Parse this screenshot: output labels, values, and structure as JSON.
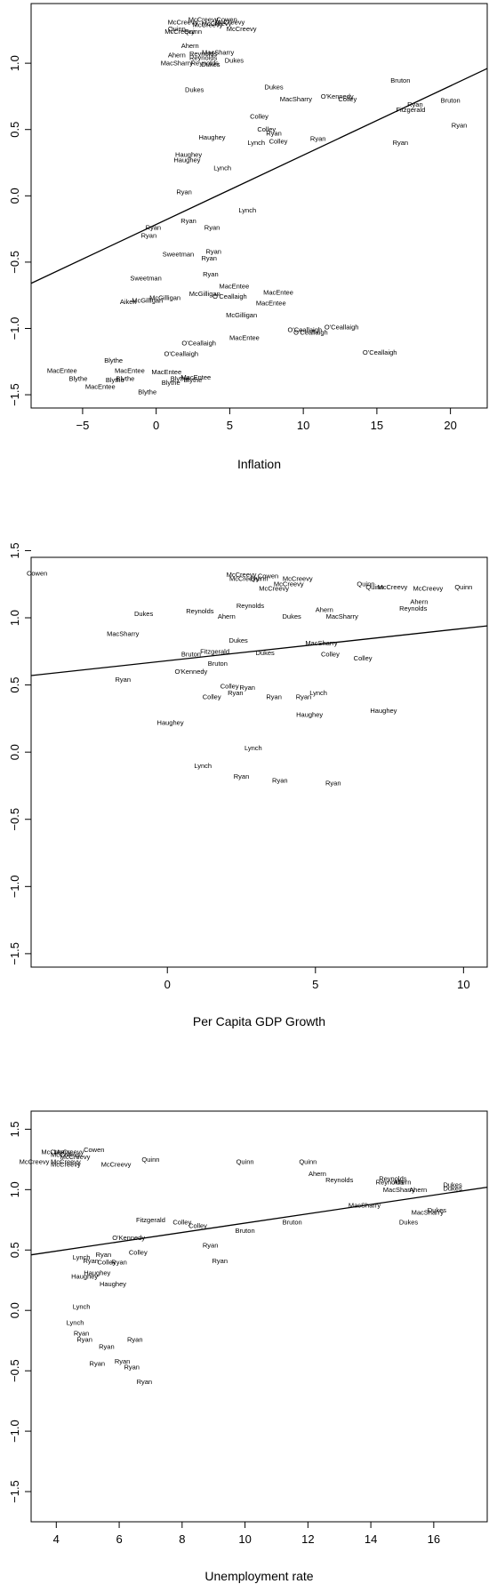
{
  "chart_data": [
    {
      "type": "scatter",
      "xlabel": "Inflation",
      "ylabel": "",
      "xlim": [
        -8.5,
        22.5
      ],
      "ylim": [
        -1.6,
        1.45
      ],
      "xticks": [
        -5,
        0,
        5,
        10,
        15,
        20
      ],
      "xtick_labels": [
        "−5",
        "0",
        "5",
        "10",
        "15",
        "20"
      ],
      "yticks": [
        -1.5,
        -1.0,
        -0.5,
        0.0,
        0.5,
        1.0
      ],
      "ytick_labels": [
        "−1.5",
        "−1.0",
        "−0.5",
        "0.0",
        "0.5",
        "1.0"
      ],
      "fit_line": {
        "x": [
          -8.5,
          22.5
        ],
        "y": [
          -0.66,
          0.96
        ]
      },
      "points": [
        {
          "x": 3.2,
          "y": 1.33,
          "label": "McCreevy"
        },
        {
          "x": 4.8,
          "y": 1.33,
          "label": "Cowen"
        },
        {
          "x": 1.8,
          "y": 1.31,
          "label": "McCreevy"
        },
        {
          "x": 4.1,
          "y": 1.3,
          "label": "McCreevy"
        },
        {
          "x": 5.0,
          "y": 1.31,
          "label": "McCreevy"
        },
        {
          "x": 3.5,
          "y": 1.29,
          "label": "McCreevy"
        },
        {
          "x": 5.8,
          "y": 1.26,
          "label": "McCreevy"
        },
        {
          "x": 1.4,
          "y": 1.26,
          "label": "Quinn"
        },
        {
          "x": 1.6,
          "y": 1.24,
          "label": "McCreevy"
        },
        {
          "x": 2.5,
          "y": 1.24,
          "label": "Quinn"
        },
        {
          "x": 2.3,
          "y": 1.13,
          "label": "Ahern"
        },
        {
          "x": 4.2,
          "y": 1.08,
          "label": "MacSharry"
        },
        {
          "x": 3.2,
          "y": 1.07,
          "label": "Reynolds"
        },
        {
          "x": 1.4,
          "y": 1.06,
          "label": "Ahern"
        },
        {
          "x": 3.2,
          "y": 1.04,
          "label": "Reynolds"
        },
        {
          "x": 1.4,
          "y": 1.0,
          "label": "MacSharry"
        },
        {
          "x": 3.3,
          "y": 1.0,
          "label": "Reynolds"
        },
        {
          "x": 3.7,
          "y": 0.99,
          "label": "Dukes"
        },
        {
          "x": 5.3,
          "y": 1.02,
          "label": "Dukes"
        },
        {
          "x": 2.6,
          "y": 0.8,
          "label": "Dukes"
        },
        {
          "x": 8.0,
          "y": 0.82,
          "label": "Dukes"
        },
        {
          "x": 9.5,
          "y": 0.73,
          "label": "MacSharry"
        },
        {
          "x": 12.3,
          "y": 0.75,
          "label": "O'Kennedy"
        },
        {
          "x": 13.0,
          "y": 0.73,
          "label": "Colley"
        },
        {
          "x": 16.6,
          "y": 0.87,
          "label": "Bruton"
        },
        {
          "x": 20.0,
          "y": 0.72,
          "label": "Bruton"
        },
        {
          "x": 17.6,
          "y": 0.69,
          "label": "Ryan"
        },
        {
          "x": 17.3,
          "y": 0.65,
          "label": "Fitzgerald"
        },
        {
          "x": 20.6,
          "y": 0.53,
          "label": "Ryan"
        },
        {
          "x": 16.6,
          "y": 0.4,
          "label": "Ryan"
        },
        {
          "x": 7.0,
          "y": 0.6,
          "label": "Colley"
        },
        {
          "x": 7.5,
          "y": 0.5,
          "label": "Colley"
        },
        {
          "x": 8.0,
          "y": 0.47,
          "label": "Ryan"
        },
        {
          "x": 3.8,
          "y": 0.44,
          "label": "Haughey"
        },
        {
          "x": 8.3,
          "y": 0.41,
          "label": "Colley"
        },
        {
          "x": 6.8,
          "y": 0.4,
          "label": "Lynch"
        },
        {
          "x": 11.0,
          "y": 0.43,
          "label": "Ryan"
        },
        {
          "x": 2.2,
          "y": 0.31,
          "label": "Haughey"
        },
        {
          "x": 2.1,
          "y": 0.27,
          "label": "Haughey"
        },
        {
          "x": 4.5,
          "y": 0.21,
          "label": "Lynch"
        },
        {
          "x": 1.9,
          "y": 0.03,
          "label": "Ryan"
        },
        {
          "x": 6.2,
          "y": -0.11,
          "label": "Lynch"
        },
        {
          "x": 2.2,
          "y": -0.19,
          "label": "Ryan"
        },
        {
          "x": -0.2,
          "y": -0.24,
          "label": "Ryan"
        },
        {
          "x": 3.8,
          "y": -0.24,
          "label": "Ryan"
        },
        {
          "x": -0.5,
          "y": -0.3,
          "label": "Ryan"
        },
        {
          "x": 3.9,
          "y": -0.42,
          "label": "Ryan"
        },
        {
          "x": 1.5,
          "y": -0.44,
          "label": "Sweetman"
        },
        {
          "x": 3.6,
          "y": -0.47,
          "label": "Ryan"
        },
        {
          "x": 3.7,
          "y": -0.59,
          "label": "Ryan"
        },
        {
          "x": -0.7,
          "y": -0.62,
          "label": "Sweetman"
        },
        {
          "x": 5.3,
          "y": -0.68,
          "label": "MacEntee"
        },
        {
          "x": 8.3,
          "y": -0.73,
          "label": "MacEntee"
        },
        {
          "x": 3.3,
          "y": -0.74,
          "label": "McGilligan"
        },
        {
          "x": 5.0,
          "y": -0.76,
          "label": "O'Ceallaigh"
        },
        {
          "x": 0.6,
          "y": -0.77,
          "label": "McGilligan"
        },
        {
          "x": -0.6,
          "y": -0.79,
          "label": "McGilligan"
        },
        {
          "x": -1.9,
          "y": -0.8,
          "label": "Aiken"
        },
        {
          "x": 7.8,
          "y": -0.81,
          "label": "MacEntee"
        },
        {
          "x": 5.8,
          "y": -0.9,
          "label": "McGilligan"
        },
        {
          "x": 12.6,
          "y": -0.99,
          "label": "O'Ceallaigh"
        },
        {
          "x": 10.1,
          "y": -1.01,
          "label": "O'Ceallaigh"
        },
        {
          "x": 10.5,
          "y": -1.03,
          "label": "O'Ceallaigh"
        },
        {
          "x": 6.0,
          "y": -1.07,
          "label": "MacEntee"
        },
        {
          "x": 2.9,
          "y": -1.11,
          "label": "O'Ceallaigh"
        },
        {
          "x": 15.2,
          "y": -1.18,
          "label": "O'Ceallaigh"
        },
        {
          "x": 1.7,
          "y": -1.19,
          "label": "O'Ceallaigh"
        },
        {
          "x": -2.9,
          "y": -1.24,
          "label": "Blythe"
        },
        {
          "x": -6.4,
          "y": -1.32,
          "label": "MacEntee"
        },
        {
          "x": -1.8,
          "y": -1.32,
          "label": "MacEntee"
        },
        {
          "x": 0.7,
          "y": -1.33,
          "label": "MacEntee"
        },
        {
          "x": -5.3,
          "y": -1.38,
          "label": "Blythe"
        },
        {
          "x": -2.1,
          "y": -1.38,
          "label": "Blythe"
        },
        {
          "x": -2.8,
          "y": -1.39,
          "label": "Blythe"
        },
        {
          "x": 2.7,
          "y": -1.37,
          "label": "MacEntee"
        },
        {
          "x": 1.6,
          "y": -1.38,
          "label": "Blythe"
        },
        {
          "x": 2.5,
          "y": -1.39,
          "label": "Blythe"
        },
        {
          "x": 1.0,
          "y": -1.41,
          "label": "Blythe"
        },
        {
          "x": -3.8,
          "y": -1.44,
          "label": "MacEntee"
        },
        {
          "x": -0.6,
          "y": -1.48,
          "label": "Blythe"
        }
      ]
    },
    {
      "type": "scatter",
      "xlabel": "Per Capita GDP Growth",
      "ylabel": "",
      "xlim": [
        -4.6,
        10.8
      ],
      "ylim": [
        -1.6,
        1.45
      ],
      "xticks": [
        0,
        5,
        10
      ],
      "xtick_labels": [
        "0",
        "5",
        "10"
      ],
      "yticks": [
        -1.5,
        -1.0,
        -0.5,
        0.0,
        0.5,
        1.0,
        1.5
      ],
      "ytick_labels": [
        "−1.5",
        "−1.0",
        "−0.5",
        "0.0",
        "0.5",
        "1.0",
        "1.5"
      ],
      "fit_line": {
        "x": [
          -4.6,
          10.8
        ],
        "y": [
          0.57,
          0.94
        ]
      },
      "points": [
        {
          "x": -4.4,
          "y": 1.33,
          "label": "Cowen"
        },
        {
          "x": 2.5,
          "y": 1.32,
          "label": "McCreevy"
        },
        {
          "x": 3.4,
          "y": 1.31,
          "label": "Cowen"
        },
        {
          "x": 2.6,
          "y": 1.29,
          "label": "McCreevy"
        },
        {
          "x": 3.1,
          "y": 1.29,
          "label": "Quinn"
        },
        {
          "x": 4.4,
          "y": 1.29,
          "label": "McCreevy"
        },
        {
          "x": 4.1,
          "y": 1.25,
          "label": "McCreevy"
        },
        {
          "x": 3.6,
          "y": 1.22,
          "label": "McCreevy"
        },
        {
          "x": 6.7,
          "y": 1.25,
          "label": "Quinn"
        },
        {
          "x": 7.0,
          "y": 1.23,
          "label": "Quinn"
        },
        {
          "x": 7.6,
          "y": 1.23,
          "label": "McCreevy"
        },
        {
          "x": 8.8,
          "y": 1.22,
          "label": "McCreevy"
        },
        {
          "x": 10.0,
          "y": 1.23,
          "label": "Quinn"
        },
        {
          "x": 8.5,
          "y": 1.12,
          "label": "Ahern"
        },
        {
          "x": 8.3,
          "y": 1.07,
          "label": "Reynolds"
        },
        {
          "x": 2.8,
          "y": 1.09,
          "label": "Reynolds"
        },
        {
          "x": 1.1,
          "y": 1.05,
          "label": "Reynolds"
        },
        {
          "x": 5.3,
          "y": 1.06,
          "label": "Ahern"
        },
        {
          "x": -0.8,
          "y": 1.03,
          "label": "Dukes"
        },
        {
          "x": 2.0,
          "y": 1.01,
          "label": "Ahern"
        },
        {
          "x": 4.2,
          "y": 1.01,
          "label": "Dukes"
        },
        {
          "x": 5.9,
          "y": 1.01,
          "label": "MacSharry"
        },
        {
          "x": -1.5,
          "y": 0.88,
          "label": "MacSharry"
        },
        {
          "x": 2.4,
          "y": 0.83,
          "label": "Dukes"
        },
        {
          "x": 5.2,
          "y": 0.81,
          "label": "MacSharry"
        },
        {
          "x": 3.3,
          "y": 0.74,
          "label": "Dukes"
        },
        {
          "x": 1.6,
          "y": 0.75,
          "label": "Fitzgerald"
        },
        {
          "x": 0.8,
          "y": 0.73,
          "label": "Bruton"
        },
        {
          "x": 5.5,
          "y": 0.73,
          "label": "Colley"
        },
        {
          "x": 6.6,
          "y": 0.7,
          "label": "Colley"
        },
        {
          "x": 1.7,
          "y": 0.66,
          "label": "Bruton"
        },
        {
          "x": 0.8,
          "y": 0.6,
          "label": "O'Kennedy"
        },
        {
          "x": -1.5,
          "y": 0.54,
          "label": "Ryan"
        },
        {
          "x": 2.1,
          "y": 0.49,
          "label": "Colley"
        },
        {
          "x": 2.7,
          "y": 0.48,
          "label": "Ryan"
        },
        {
          "x": 2.3,
          "y": 0.44,
          "label": "Ryan"
        },
        {
          "x": 1.5,
          "y": 0.41,
          "label": "Colley"
        },
        {
          "x": 3.6,
          "y": 0.41,
          "label": "Ryan"
        },
        {
          "x": 4.6,
          "y": 0.41,
          "label": "Ryan"
        },
        {
          "x": 5.1,
          "y": 0.44,
          "label": "Lynch"
        },
        {
          "x": 7.3,
          "y": 0.31,
          "label": "Haughey"
        },
        {
          "x": 4.8,
          "y": 0.28,
          "label": "Haughey"
        },
        {
          "x": 0.1,
          "y": 0.22,
          "label": "Haughey"
        },
        {
          "x": 2.9,
          "y": 0.03,
          "label": "Lynch"
        },
        {
          "x": 1.2,
          "y": -0.1,
          "label": "Lynch"
        },
        {
          "x": 2.5,
          "y": -0.18,
          "label": "Ryan"
        },
        {
          "x": 3.8,
          "y": -0.21,
          "label": "Ryan"
        },
        {
          "x": 5.6,
          "y": -0.23,
          "label": "Ryan"
        }
      ]
    },
    {
      "type": "scatter",
      "xlabel": "Unemployment rate",
      "ylabel": "",
      "xlim": [
        3.2,
        17.7
      ],
      "ylim": [
        -1.75,
        1.65
      ],
      "xticks": [
        4,
        6,
        8,
        10,
        12,
        14,
        16
      ],
      "xtick_labels": [
        "4",
        "6",
        "8",
        "10",
        "12",
        "14",
        "16"
      ],
      "yticks": [
        -1.5,
        -1.0,
        -0.5,
        0.0,
        0.5,
        1.0,
        1.5
      ],
      "ytick_labels": [
        "−1.5",
        "−1.0",
        "−0.5",
        "0.0",
        "0.5",
        "1.0",
        "1.5"
      ],
      "fit_line": {
        "x": [
          3.2,
          17.7
        ],
        "y": [
          0.46,
          1.02
        ]
      },
      "points": [
        {
          "x": 4.0,
          "y": 1.31,
          "label": "McCreevy"
        },
        {
          "x": 4.4,
          "y": 1.31,
          "label": "McCreevy"
        },
        {
          "x": 5.2,
          "y": 1.33,
          "label": "Cowen"
        },
        {
          "x": 4.3,
          "y": 1.29,
          "label": "McCreevy"
        },
        {
          "x": 4.6,
          "y": 1.27,
          "label": "McCreevy"
        },
        {
          "x": 3.3,
          "y": 1.23,
          "label": "McCreevy"
        },
        {
          "x": 4.3,
          "y": 1.23,
          "label": "McCreevy"
        },
        {
          "x": 4.3,
          "y": 1.21,
          "label": "McCreevy"
        },
        {
          "x": 5.9,
          "y": 1.21,
          "label": "McCreevy"
        },
        {
          "x": 7.0,
          "y": 1.25,
          "label": "Quinn"
        },
        {
          "x": 10.0,
          "y": 1.23,
          "label": "Quinn"
        },
        {
          "x": 12.0,
          "y": 1.23,
          "label": "Quinn"
        },
        {
          "x": 12.3,
          "y": 1.13,
          "label": "Ahern"
        },
        {
          "x": 13.0,
          "y": 1.08,
          "label": "Reynolds"
        },
        {
          "x": 14.7,
          "y": 1.09,
          "label": "Reynolds"
        },
        {
          "x": 14.6,
          "y": 1.06,
          "label": "Reynolds"
        },
        {
          "x": 15.0,
          "y": 1.06,
          "label": "Ahern"
        },
        {
          "x": 15.5,
          "y": 1.0,
          "label": "Ahern"
        },
        {
          "x": 14.9,
          "y": 1.0,
          "label": "MacSharry"
        },
        {
          "x": 16.6,
          "y": 1.04,
          "label": "Dukes"
        },
        {
          "x": 16.6,
          "y": 1.01,
          "label": "Dukes"
        },
        {
          "x": 13.8,
          "y": 0.87,
          "label": "MacSharry"
        },
        {
          "x": 16.1,
          "y": 0.83,
          "label": "Dukes"
        },
        {
          "x": 15.8,
          "y": 0.81,
          "label": "MacSharry"
        },
        {
          "x": 15.2,
          "y": 0.73,
          "label": "Dukes"
        },
        {
          "x": 11.5,
          "y": 0.73,
          "label": "Bruton"
        },
        {
          "x": 10.0,
          "y": 0.66,
          "label": "Bruton"
        },
        {
          "x": 7.0,
          "y": 0.75,
          "label": "Fitzgerald"
        },
        {
          "x": 8.0,
          "y": 0.73,
          "label": "Colley"
        },
        {
          "x": 8.5,
          "y": 0.7,
          "label": "Colley"
        },
        {
          "x": 6.3,
          "y": 0.6,
          "label": "O'Kennedy"
        },
        {
          "x": 6.6,
          "y": 0.48,
          "label": "Colley"
        },
        {
          "x": 8.9,
          "y": 0.54,
          "label": "Ryan"
        },
        {
          "x": 4.8,
          "y": 0.44,
          "label": "Lynch"
        },
        {
          "x": 5.5,
          "y": 0.46,
          "label": "Ryan"
        },
        {
          "x": 5.1,
          "y": 0.41,
          "label": "Ryan"
        },
        {
          "x": 5.6,
          "y": 0.4,
          "label": "Colley"
        },
        {
          "x": 6.0,
          "y": 0.4,
          "label": "Ryan"
        },
        {
          "x": 9.2,
          "y": 0.41,
          "label": "Ryan"
        },
        {
          "x": 5.3,
          "y": 0.31,
          "label": "Haughey"
        },
        {
          "x": 4.9,
          "y": 0.28,
          "label": "Haughey"
        },
        {
          "x": 5.8,
          "y": 0.22,
          "label": "Haughey"
        },
        {
          "x": 4.8,
          "y": 0.03,
          "label": "Lynch"
        },
        {
          "x": 4.6,
          "y": -0.1,
          "label": "Lynch"
        },
        {
          "x": 4.8,
          "y": -0.19,
          "label": "Ryan"
        },
        {
          "x": 4.9,
          "y": -0.24,
          "label": "Ryan"
        },
        {
          "x": 6.5,
          "y": -0.24,
          "label": "Ryan"
        },
        {
          "x": 5.6,
          "y": -0.3,
          "label": "Ryan"
        },
        {
          "x": 6.1,
          "y": -0.42,
          "label": "Ryan"
        },
        {
          "x": 5.3,
          "y": -0.44,
          "label": "Ryan"
        },
        {
          "x": 6.4,
          "y": -0.47,
          "label": "Ryan"
        },
        {
          "x": 6.8,
          "y": -0.59,
          "label": "Ryan"
        }
      ]
    }
  ]
}
